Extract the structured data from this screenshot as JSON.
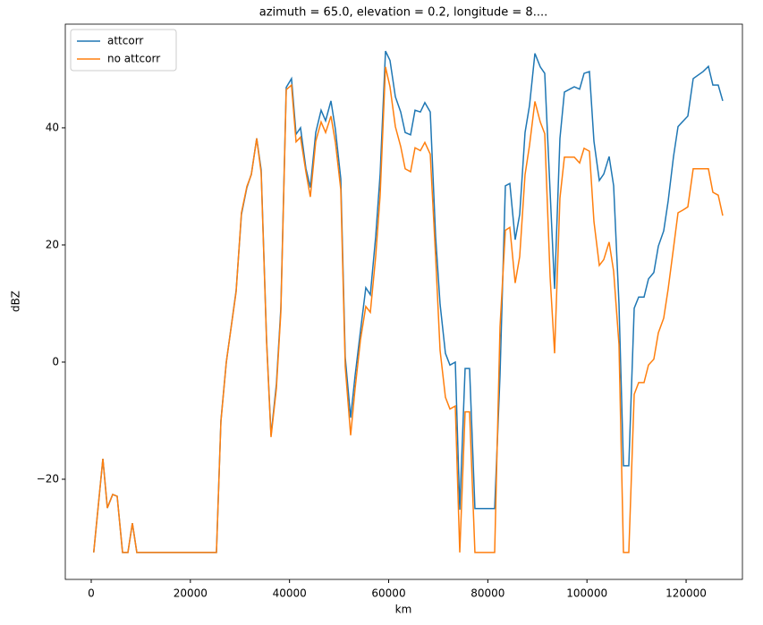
{
  "chart_data": {
    "type": "line",
    "title": "azimuth = 65.0, elevation = 0.2, longitude = 8....",
    "xlabel": "km",
    "ylabel": "dBZ",
    "x": [
      500,
      2350,
      3250,
      4330,
      5230,
      6320,
      7400,
      8300,
      9200,
      25260,
      26160,
      27250,
      29230,
      30300,
      31400,
      32300,
      33380,
      34280,
      35370,
      36270,
      37350,
      38250,
      39340,
      40400,
      41320,
      42220,
      43300,
      44200,
      45290,
      46370,
      47280,
      48360,
      49260,
      50340,
      51240,
      52330,
      53230,
      54310,
      55390,
      56300,
      57380,
      58280,
      59360,
      60270,
      61350,
      62430,
      63330,
      64420,
      65320,
      66400,
      67300,
      68390,
      69470,
      70370,
      71450,
      72360,
      73440,
      74340,
      75420,
      76320,
      77400,
      81380,
      82460,
      83540,
      84440,
      85520,
      86430,
      87510,
      88410,
      89500,
      90580,
      91480,
      92570,
      93470,
      94550,
      95450,
      96540,
      97440,
      98520,
      99420,
      100500,
      101410,
      102490,
      103390,
      104470,
      105380,
      106460,
      107360,
      108440,
      109530,
      110430,
      111510,
      112410,
      113490,
      114400,
      115480,
      116380,
      117460,
      118370,
      119450,
      120350,
      121430,
      123420,
      124500,
      125400,
      126480,
      127390
    ],
    "series": [
      {
        "name": "attcorr",
        "color": "#1f77b4",
        "values": [
          -32.5,
          -16.5,
          -24.9,
          -22.6,
          -22.9,
          -32.5,
          -32.5,
          -27.5,
          -32.5,
          -32.5,
          -10,
          0,
          12.2,
          25.2,
          29.8,
          32.1,
          38.2,
          32.8,
          3.8,
          -12.5,
          -3.8,
          9.2,
          46.9,
          48.4,
          38.9,
          40,
          33.1,
          29.8,
          39.2,
          43,
          41.2,
          44.6,
          39.7,
          31.3,
          0.8,
          -9.5,
          -2.3,
          5.3,
          12.7,
          11.5,
          21.4,
          32.1,
          53.1,
          51.5,
          45.3,
          42.7,
          39.2,
          38.8,
          43,
          42.7,
          44.3,
          42.7,
          21.4,
          9.9,
          1.5,
          -0.5,
          0,
          -25.2,
          -1.1,
          -1.1,
          -25,
          -25,
          -2.3,
          30.1,
          30.5,
          20.9,
          25.2,
          39.2,
          43.8,
          52.7,
          50.4,
          49.3,
          29,
          12.5,
          38.2,
          46.1,
          46.6,
          47,
          46.6,
          49.3,
          49.6,
          37.7,
          31,
          32.1,
          35.1,
          30.1,
          9.9,
          -17.7,
          -17.7,
          9.2,
          11.1,
          11.1,
          14.2,
          15.3,
          19.8,
          22.4,
          27.5,
          35.1,
          40.2,
          41.2,
          42,
          48.4,
          49.6,
          50.5,
          47.3,
          47.3,
          44.6
        ]
      },
      {
        "name": "no attcorr",
        "color": "#ff7f0e",
        "values": [
          -32.5,
          -16.5,
          -24.9,
          -22.6,
          -22.9,
          -32.5,
          -32.5,
          -27.5,
          -32.5,
          -32.5,
          -10.2,
          0,
          12,
          25.5,
          30,
          32,
          38.2,
          32.3,
          3.5,
          -12.8,
          -4.5,
          8.5,
          46.5,
          47.3,
          37.6,
          38.4,
          32.5,
          28.2,
          37.7,
          41,
          39.2,
          42,
          37.5,
          29.5,
          -0.8,
          -12.5,
          -4.5,
          3.8,
          9.5,
          8.5,
          18,
          28.5,
          50.4,
          47,
          40.2,
          36.8,
          33,
          32.5,
          36.6,
          36.1,
          37.5,
          35.5,
          18,
          2,
          -6,
          -8,
          -7.5,
          -32.5,
          -8.5,
          -8.5,
          -32.5,
          -32.5,
          6,
          22.5,
          23,
          13.5,
          18,
          32,
          37,
          44.5,
          41,
          39,
          14.5,
          1.5,
          28,
          35,
          35,
          35,
          34,
          36.5,
          36,
          24,
          16.5,
          17.5,
          20.5,
          15.5,
          3,
          -32.5,
          -32.5,
          -5.5,
          -3.5,
          -3.5,
          -0.5,
          0.5,
          5,
          7.5,
          12.5,
          19.5,
          25.5,
          26,
          26.5,
          33,
          33,
          33,
          29,
          28.5,
          25
        ]
      }
    ],
    "xlim": [
      -5230,
      131360
    ],
    "ylim": [
      -37.1,
      57.7
    ],
    "xticks": [
      0,
      20000,
      40000,
      60000,
      80000,
      100000,
      120000
    ],
    "yticks": [
      {
        "value": -20,
        "label": "−20"
      },
      0,
      20,
      40
    ],
    "legend": "upper left"
  }
}
